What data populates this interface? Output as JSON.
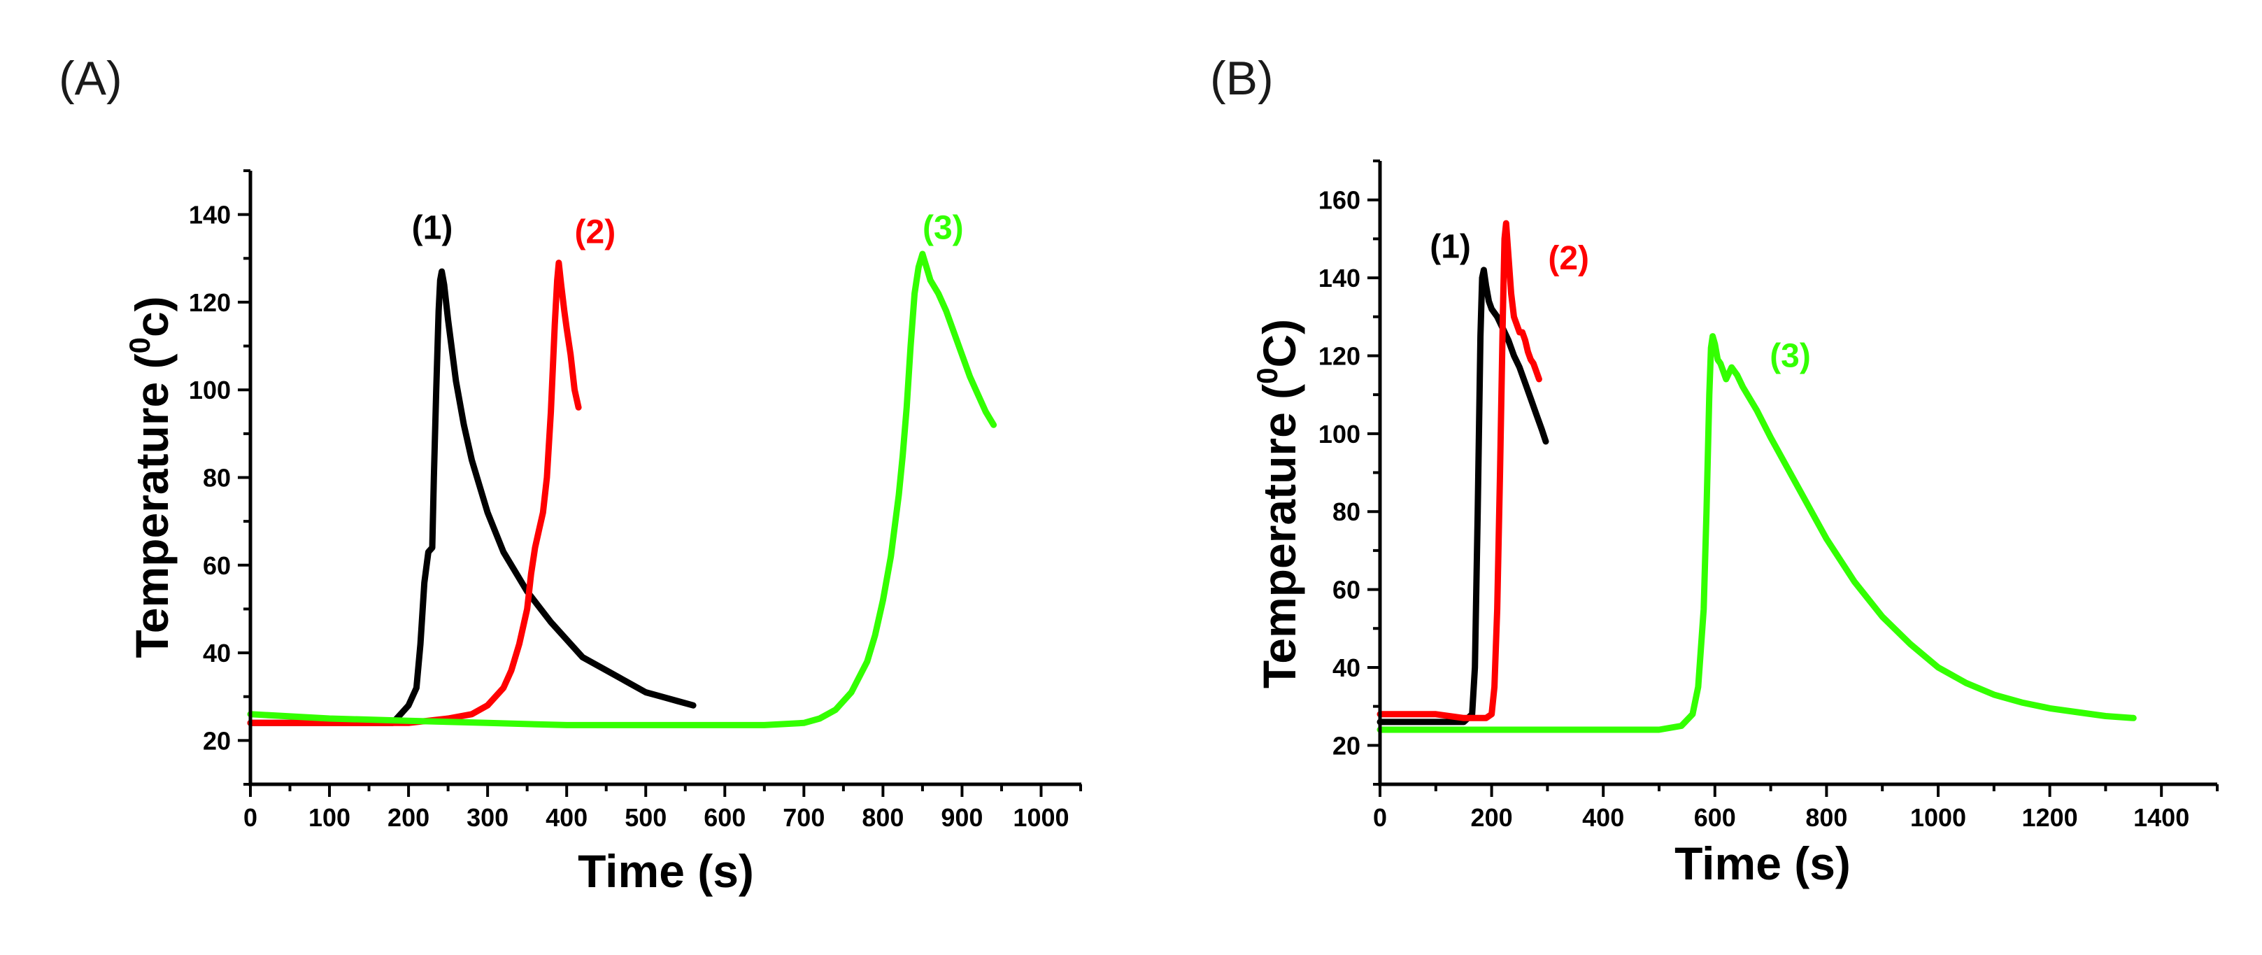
{
  "chart_data": [
    {
      "id": "A",
      "panel_label": "(A)",
      "type": "line",
      "xlabel": "Time (s)",
      "ylabel": {
        "before": "Temperature (",
        "sup": "0",
        "after": "c)"
      },
      "xlim": [
        0,
        1050
      ],
      "ylim": [
        10,
        150
      ],
      "xticks": [
        0,
        100,
        200,
        300,
        400,
        500,
        600,
        700,
        800,
        900,
        1000
      ],
      "xticks_minor": [
        50,
        150,
        250,
        350,
        450,
        550,
        650,
        750,
        850,
        950,
        1050
      ],
      "yticks": [
        20,
        40,
        60,
        80,
        100,
        120,
        140
      ],
      "yticks_minor": [
        10,
        30,
        50,
        70,
        90,
        110,
        130,
        150
      ],
      "grid": false,
      "series": [
        {
          "name": "(1)",
          "color": "#000000",
          "label_at": [
            230,
            137
          ],
          "x": [
            0,
            50,
            100,
            150,
            180,
            190,
            200,
            210,
            215,
            220,
            225,
            230,
            232,
            235,
            238,
            240,
            242,
            245,
            250,
            260,
            270,
            280,
            300,
            320,
            350,
            380,
            400,
            420,
            450,
            480,
            500,
            520,
            540,
            560
          ],
          "y": [
            24,
            24,
            24,
            24,
            24,
            26,
            28,
            32,
            42,
            56,
            63,
            64,
            80,
            100,
            118,
            125,
            127,
            124,
            116,
            102,
            92,
            84,
            72,
            63,
            54,
            47,
            43,
            39,
            36,
            33,
            31,
            30,
            29,
            28
          ]
        },
        {
          "name": "(2)",
          "color": "#ff0000",
          "label_at": [
            436,
            136
          ],
          "x": [
            0,
            50,
            100,
            150,
            200,
            250,
            280,
            300,
            320,
            330,
            340,
            350,
            355,
            360,
            365,
            370,
            375,
            380,
            385,
            388,
            390,
            393,
            397,
            400,
            405,
            410,
            415
          ],
          "y": [
            24,
            24,
            24,
            24,
            24,
            25,
            26,
            28,
            32,
            36,
            42,
            50,
            58,
            64,
            68,
            72,
            80,
            95,
            115,
            125,
            129,
            124,
            118,
            114,
            108,
            100,
            96
          ]
        },
        {
          "name": "(3)",
          "color": "#33ff00",
          "label_at": [
            876,
            137
          ],
          "x": [
            0,
            100,
            200,
            300,
            400,
            500,
            600,
            650,
            700,
            720,
            740,
            760,
            780,
            790,
            800,
            810,
            820,
            825,
            830,
            835,
            840,
            845,
            850,
            855,
            860,
            870,
            880,
            890,
            900,
            910,
            920,
            930,
            940
          ],
          "y": [
            26,
            25,
            24.5,
            24,
            23.5,
            23.5,
            23.5,
            23.5,
            24,
            25,
            27,
            31,
            38,
            44,
            52,
            62,
            76,
            85,
            96,
            110,
            122,
            128,
            131,
            128,
            125,
            122,
            118,
            113,
            108,
            103,
            99,
            95,
            92
          ]
        }
      ]
    },
    {
      "id": "B",
      "panel_label": "(B)",
      "type": "line",
      "xlabel": "Time (s)",
      "ylabel": {
        "before": "Temperature (",
        "sup": "0",
        "after": "C)"
      },
      "xlim": [
        0,
        1500
      ],
      "ylim": [
        10,
        170
      ],
      "xticks": [
        0,
        200,
        400,
        600,
        800,
        1000,
        1200,
        1400
      ],
      "xticks_minor": [
        100,
        300,
        500,
        700,
        900,
        1100,
        1300,
        1500
      ],
      "yticks": [
        20,
        40,
        60,
        80,
        100,
        120,
        140,
        160
      ],
      "yticks_minor": [
        10,
        30,
        50,
        70,
        90,
        110,
        130,
        150,
        170
      ],
      "grid": false,
      "series": [
        {
          "name": "(1)",
          "color": "#000000",
          "label_at": [
            126,
            148
          ],
          "x": [
            0,
            50,
            100,
            150,
            165,
            170,
            175,
            180,
            183,
            186,
            190,
            195,
            200,
            210,
            220,
            230,
            240,
            250,
            260,
            270,
            280,
            290,
            297
          ],
          "y": [
            26,
            26,
            26,
            26,
            28,
            40,
            80,
            125,
            140,
            142,
            138,
            134,
            132,
            130,
            127,
            124,
            120,
            117,
            113,
            109,
            105,
            101,
            98
          ]
        },
        {
          "name": "(2)",
          "color": "#ff0000",
          "label_at": [
            338,
            145
          ],
          "x": [
            0,
            50,
            100,
            150,
            190,
            200,
            205,
            210,
            215,
            220,
            223,
            226,
            230,
            235,
            240,
            245,
            250,
            255,
            260,
            265,
            270,
            275,
            280,
            285
          ],
          "y": [
            28,
            28,
            28,
            27,
            27,
            28,
            35,
            55,
            90,
            130,
            150,
            154,
            146,
            136,
            130,
            128,
            126,
            126,
            124,
            121,
            119,
            118,
            116,
            114
          ]
        },
        {
          "name": "(3)",
          "color": "#33ff00",
          "label_at": [
            735,
            120
          ],
          "x": [
            0,
            100,
            200,
            300,
            400,
            500,
            540,
            560,
            570,
            580,
            585,
            590,
            593,
            596,
            600,
            605,
            610,
            620,
            630,
            640,
            650,
            675,
            700,
            750,
            800,
            850,
            900,
            950,
            1000,
            1050,
            1100,
            1150,
            1200,
            1250,
            1300,
            1350
          ],
          "y": [
            24,
            24,
            24,
            24,
            24,
            24,
            25,
            28,
            35,
            55,
            80,
            110,
            122,
            125,
            123,
            119,
            118,
            114,
            117,
            115,
            112,
            106,
            99,
            86,
            73,
            62,
            53,
            46,
            40,
            36,
            33,
            31,
            29.5,
            28.5,
            27.5,
            27
          ]
        }
      ]
    }
  ]
}
